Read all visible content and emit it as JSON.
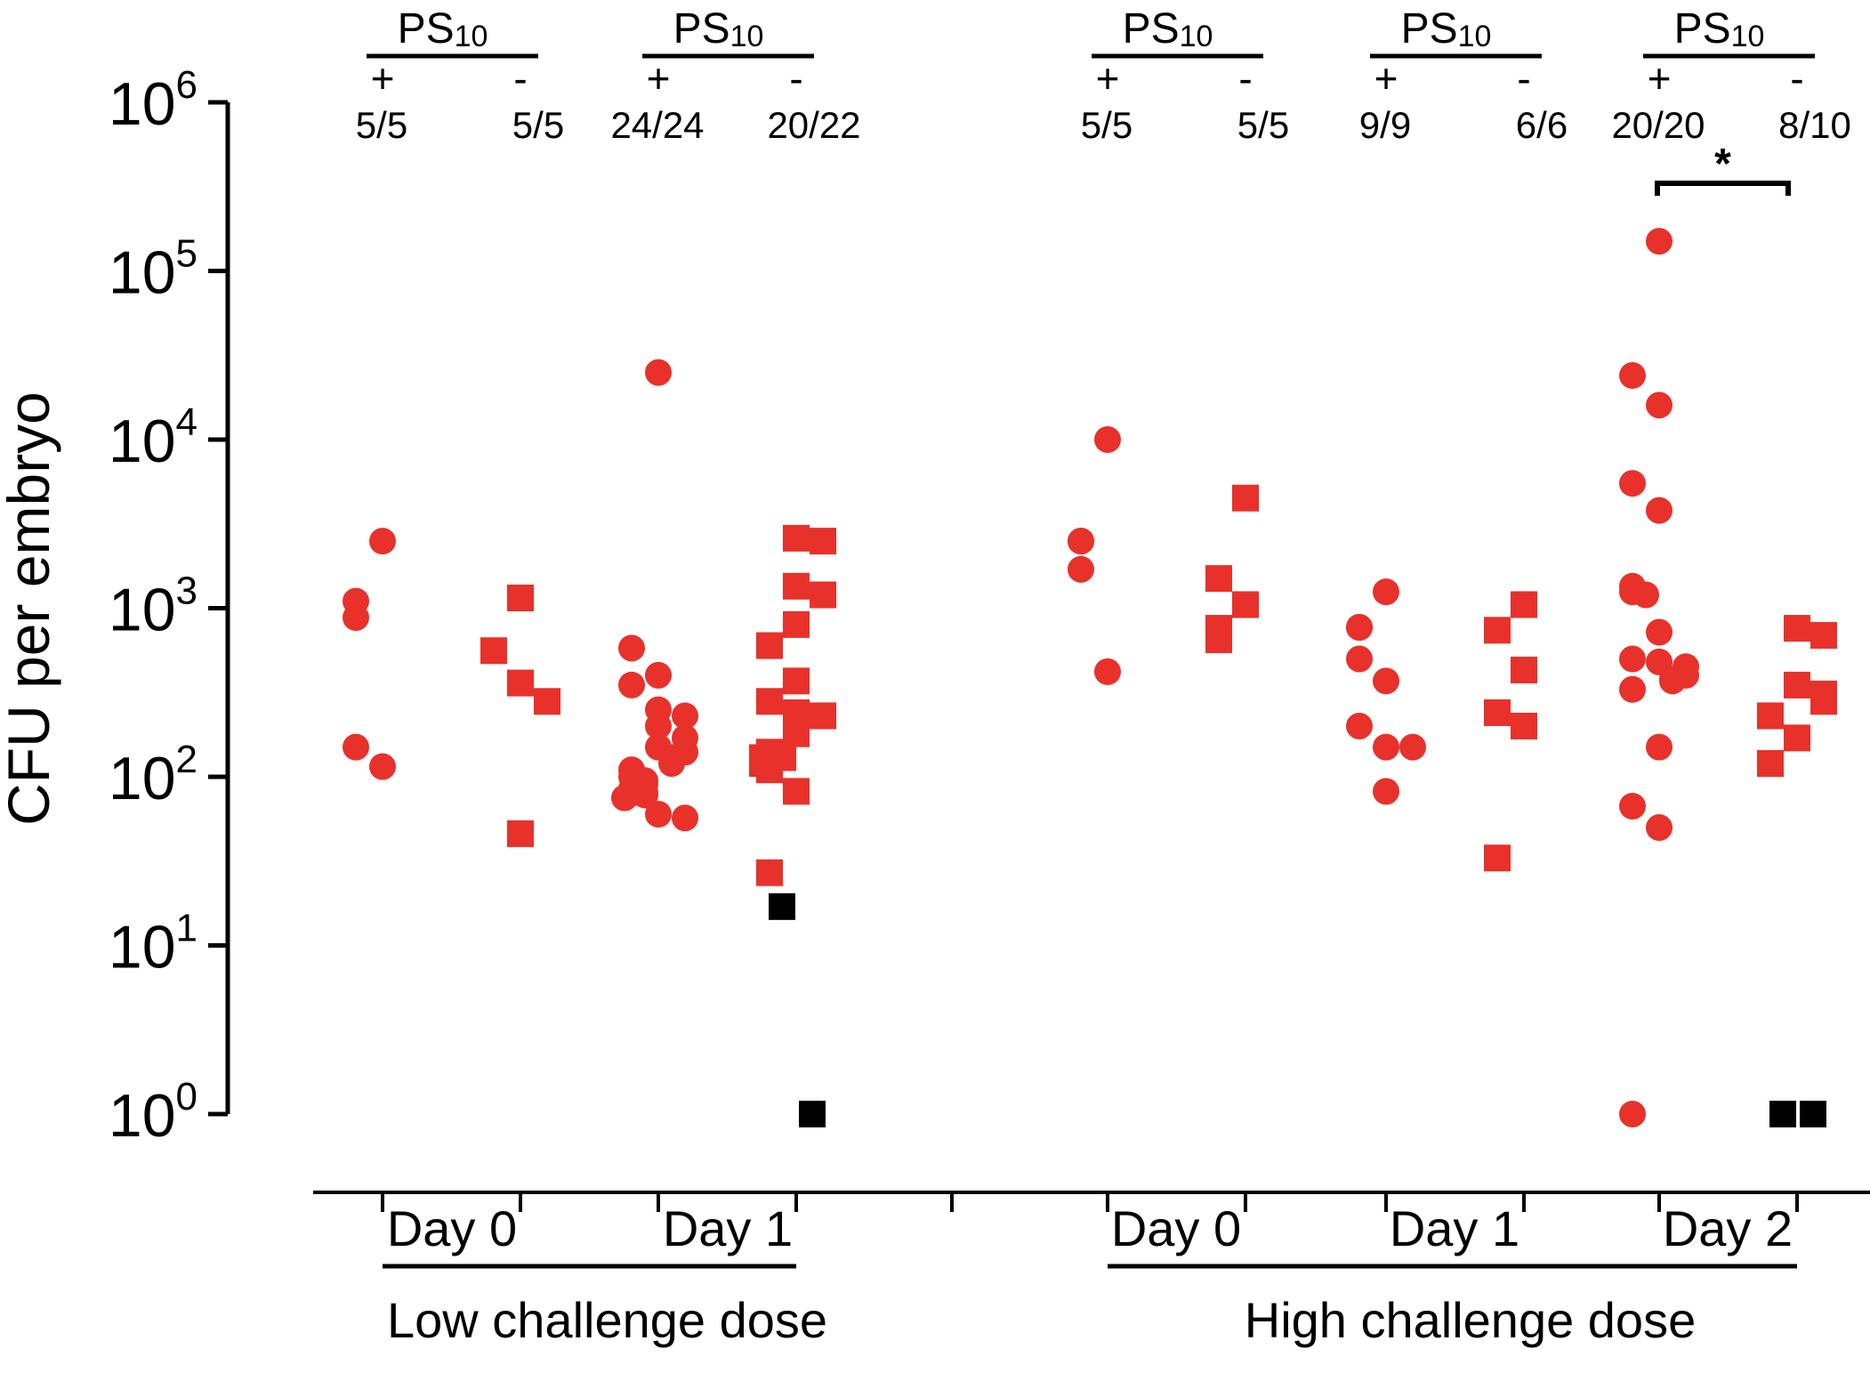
{
  "chart_data": {
    "type": "scatter",
    "ylabel": "CFU per embryo",
    "yscale": "log",
    "ylim": [
      1,
      1000000
    ],
    "yticks": [
      {
        "base": "10",
        "exp": "0"
      },
      {
        "base": "10",
        "exp": "1"
      },
      {
        "base": "10",
        "exp": "2"
      },
      {
        "base": "10",
        "exp": "3"
      },
      {
        "base": "10",
        "exp": "4"
      },
      {
        "base": "10",
        "exp": "5"
      },
      {
        "base": "10",
        "exp": "6"
      }
    ],
    "colors": {
      "positive": "#e8312a",
      "zero_or_low": "#000000"
    },
    "groups": [
      {
        "label": "Low challenge dose",
        "days": [
          {
            "label": "Day 0",
            "ps_base": "PS",
            "ps_sub": "10",
            "conditions": [
              {
                "sign": "+",
                "ratio": "5/5",
                "marker": "circle",
                "values": [
                  2500,
                  1100,
                  880,
                  150,
                  115
                ]
              },
              {
                "sign": "-",
                "ratio": "5/5",
                "marker": "square",
                "values": [
                  1150,
                  560,
                  360,
                  280,
                  46
                ]
              }
            ]
          },
          {
            "label": "Day 1",
            "ps_base": "PS",
            "ps_sub": "10",
            "conditions": [
              {
                "sign": "+",
                "ratio": "24/24",
                "marker": "circle",
                "values": [
                  25000,
                  580,
                  400,
                  350,
                  250,
                  230,
                  200,
                  170,
                  150,
                  140,
                  140,
                  130,
                  120,
                  110,
                  100,
                  95,
                  90,
                  85,
                  80,
                  80,
                  78,
                  75,
                  60,
                  57
                ]
              },
              {
                "sign": "-",
                "ratio": "20/22",
                "marker": "square",
                "values": [
                  2600,
                  2500,
                  1350,
                  1200,
                  800,
                  600,
                  370,
                  280,
                  240,
                  230,
                  180,
                  140,
                  130,
                  130,
                  130,
                  130,
                  120,
                  110,
                  82,
                  27
                ],
                "black_values": [
                  17,
                  1
                ]
              }
            ]
          }
        ]
      },
      {
        "label": "High challenge dose",
        "days": [
          {
            "label": "Day 0",
            "ps_base": "PS",
            "ps_sub": "10",
            "conditions": [
              {
                "sign": "+",
                "ratio": "5/5",
                "marker": "circle",
                "values": [
                  10000,
                  2500,
                  2500,
                  1700,
                  420
                ]
              },
              {
                "sign": "-",
                "ratio": "5/5",
                "marker": "square",
                "values": [
                  4500,
                  1500,
                  1050,
                  760,
                  650
                ]
              }
            ]
          },
          {
            "label": "Day 1",
            "ps_base": "PS",
            "ps_sub": "10",
            "conditions": [
              {
                "sign": "+",
                "ratio": "9/9",
                "marker": "circle",
                "values": [
                  1250,
                  770,
                  770,
                  500,
                  370,
                  200,
                  150,
                  150,
                  82
                ]
              },
              {
                "sign": "-",
                "ratio": "6/6",
                "marker": "square",
                "values": [
                  1050,
                  740,
                  430,
                  240,
                  200,
                  33
                ]
              }
            ]
          },
          {
            "label": "Day 2",
            "ps_base": "PS",
            "ps_sub": "10",
            "conditions": [
              {
                "sign": "+",
                "ratio": "20/20",
                "marker": "circle",
                "values": [
                  150000,
                  24000,
                  16000,
                  5500,
                  3800,
                  1350,
                  1250,
                  1200,
                  720,
                  500,
                  480,
                  450,
                  400,
                  380,
                  370,
                  330,
                  150,
                  67,
                  50,
                  1
                ]
              },
              {
                "sign": "-",
                "ratio": "8/10",
                "marker": "square",
                "values": [
                  760,
                  690,
                  350,
                  310,
                  280,
                  230,
                  170,
                  120
                ],
                "black_values": [
                  1,
                  1
                ]
              }
            ]
          }
        ]
      }
    ],
    "annotations": [
      {
        "text": "*",
        "between": [
          "High challenge dose Day 2 +",
          "High challenge dose Day 2 -"
        ]
      }
    ]
  }
}
